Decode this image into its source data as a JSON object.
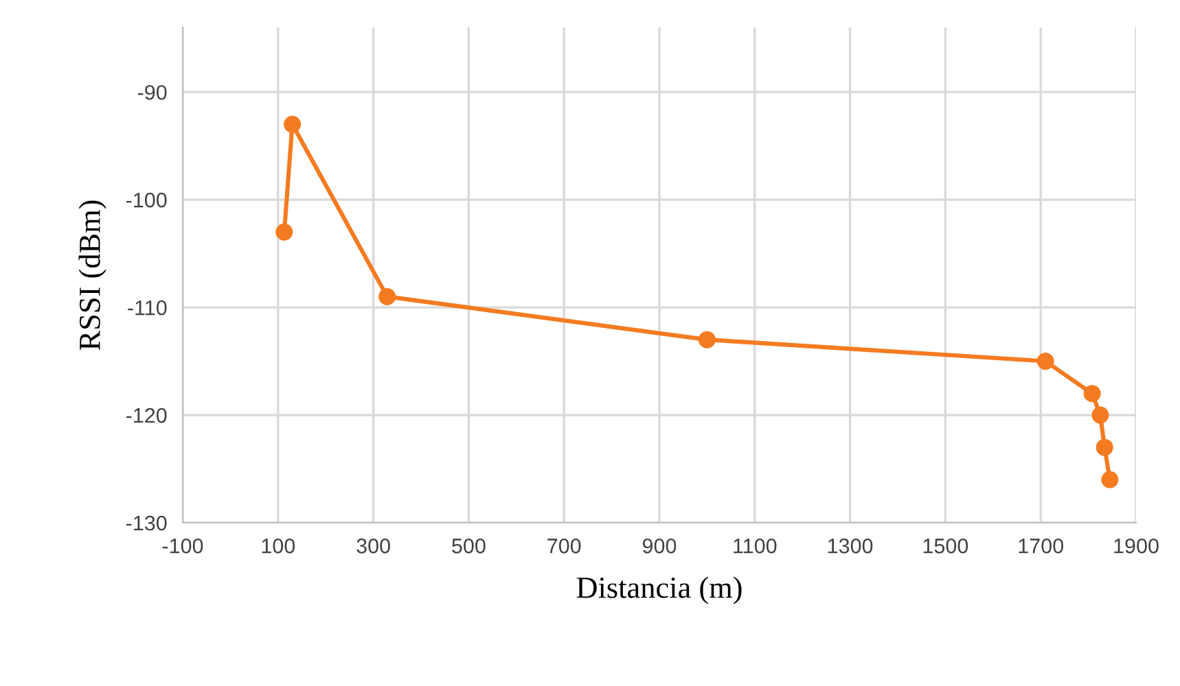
{
  "chart_data": {
    "type": "line",
    "xlabel": "Distancia (m)",
    "ylabel": "RSSI (dBm)",
    "x": [
      113,
      130,
      329,
      1000,
      1710,
      1808,
      1825,
      1834,
      1845
    ],
    "series": [
      {
        "color": "#f47b20",
        "values": [
          -103,
          -93,
          -109,
          -113,
          -115,
          -118,
          -120,
          -123,
          -126
        ]
      }
    ],
    "xlim": [
      -100,
      1900
    ],
    "xticks": [
      -100,
      100,
      300,
      500,
      700,
      900,
      1100,
      1300,
      1500,
      1700,
      1900
    ],
    "ylim": [
      -130,
      -84
    ],
    "yticks": [
      -130,
      -120,
      -110,
      -100,
      -90
    ],
    "grid": true,
    "marker": "circle",
    "line_style": "solid"
  }
}
